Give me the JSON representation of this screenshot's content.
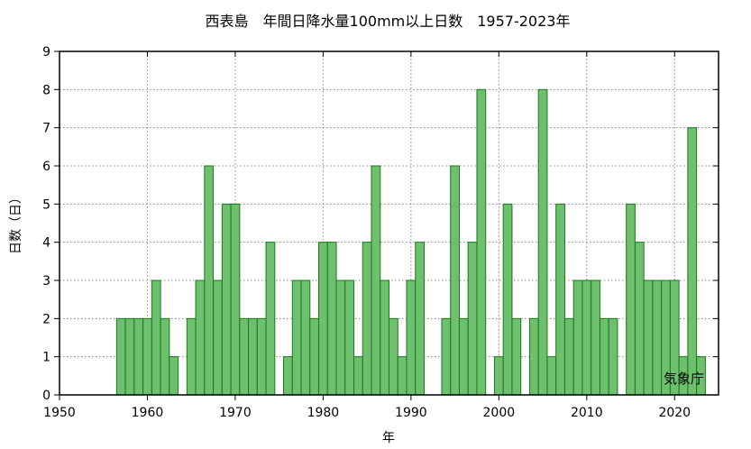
{
  "chart_data": {
    "type": "bar",
    "title": "西表島　年間日降水量100mm以上日数　1957-2023年",
    "xlabel": "年",
    "ylabel": "日数（日）",
    "credit": "気象庁",
    "xlim": [
      1950,
      2025
    ],
    "ylim": [
      0,
      9
    ],
    "x_ticks": [
      1950,
      1960,
      1970,
      1980,
      1990,
      2000,
      2010,
      2020
    ],
    "y_ticks": [
      0,
      1,
      2,
      3,
      4,
      5,
      6,
      7,
      8,
      9
    ],
    "grid": true,
    "bar_color": "#6ebf6e",
    "bar_edge_color": "#1a7a1a",
    "x": [
      1957,
      1958,
      1959,
      1960,
      1961,
      1962,
      1963,
      1964,
      1965,
      1966,
      1967,
      1968,
      1969,
      1970,
      1971,
      1972,
      1973,
      1974,
      1975,
      1976,
      1977,
      1978,
      1979,
      1980,
      1981,
      1982,
      1983,
      1984,
      1985,
      1986,
      1987,
      1988,
      1989,
      1990,
      1991,
      1992,
      1993,
      1994,
      1995,
      1996,
      1997,
      1998,
      1999,
      2000,
      2001,
      2002,
      2003,
      2004,
      2005,
      2006,
      2007,
      2008,
      2009,
      2010,
      2011,
      2012,
      2013,
      2014,
      2015,
      2016,
      2017,
      2018,
      2019,
      2020,
      2021,
      2022,
      2023
    ],
    "values": [
      2,
      2,
      2,
      2,
      3,
      2,
      1,
      0,
      2,
      3,
      6,
      3,
      5,
      5,
      2,
      2,
      2,
      4,
      0,
      1,
      3,
      3,
      2,
      4,
      4,
      3,
      3,
      1,
      4,
      6,
      3,
      2,
      1,
      3,
      4,
      0,
      0,
      2,
      6,
      2,
      4,
      8,
      0,
      1,
      5,
      2,
      0,
      2,
      8,
      1,
      5,
      2,
      3,
      3,
      3,
      2,
      2,
      0,
      5,
      4,
      3,
      3,
      3,
      3,
      1,
      7,
      1
    ]
  }
}
